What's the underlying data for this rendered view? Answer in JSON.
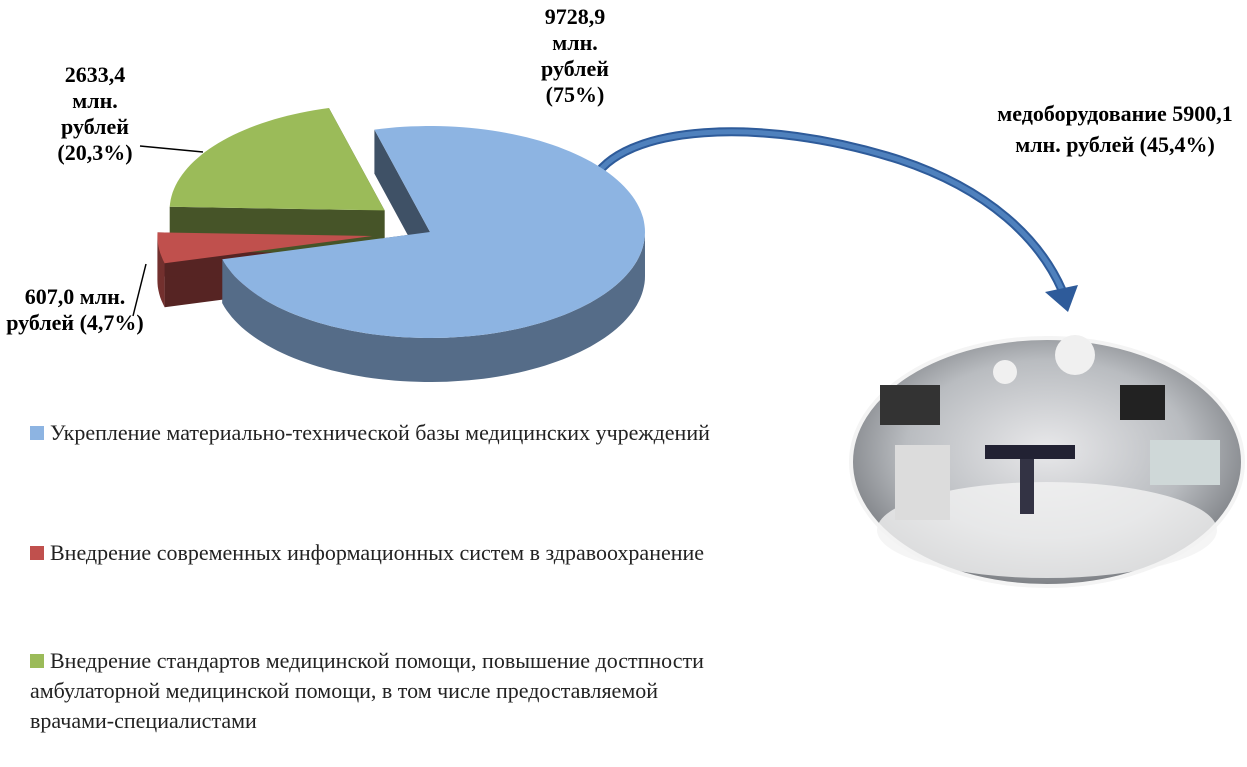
{
  "chart_data": {
    "type": "pie",
    "categories": [
      "Укрепление материально-технической базы медицинских учреждений",
      "Внедрение современных информационных систем в здравоохранение",
      "Внедрение стандартов медицинской помощи, повышение достпности амбулаторной медицинской помощи, в том числе предоставляемой врачами-специалистами"
    ],
    "values": [
      9728.9,
      607.0,
      2633.4
    ],
    "value_labels": [
      "9728,9 млн. рублей (75%)",
      "607,0 млн. рублей (4,7%)",
      "2633,4 млн. рублей (20,3%)"
    ],
    "colors": [
      "#8db4e2",
      "#c0504d",
      "#9bbb59"
    ],
    "annotations": [
      "медоборудование 5900,1 млн. рублей (45,4%)"
    ]
  }
}
